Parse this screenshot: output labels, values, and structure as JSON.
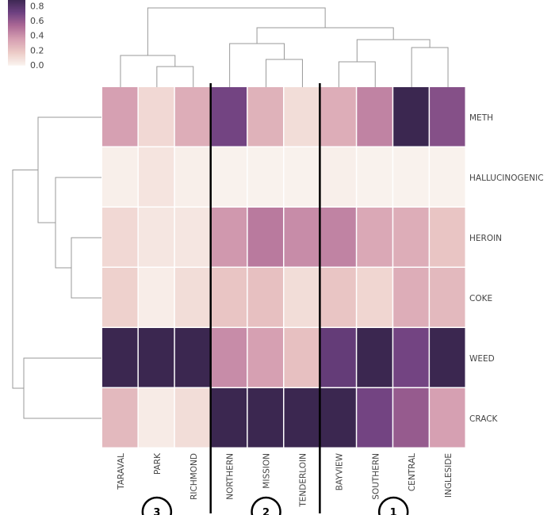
{
  "chart_data": {
    "type": "heatmap",
    "title": "",
    "columns": [
      "TARAVAL",
      "PARK",
      "RICHMOND",
      "NORTHERN",
      "MISSION",
      "TENDERLOIN",
      "BAYVIEW",
      "SOUTHERN",
      "CENTRAL",
      "INGLESIDE"
    ],
    "rows": [
      "METH",
      "HALLUCINOGENIC",
      "HEROIN",
      "COKE",
      "WEED",
      "CRACK"
    ],
    "values": [
      [
        0.35,
        0.12,
        0.3,
        0.7,
        0.28,
        0.1,
        0.3,
        0.45,
        0.92,
        0.65
      ],
      [
        0.02,
        0.07,
        0.02,
        0.01,
        0.01,
        0.01,
        0.02,
        0.01,
        0.01,
        0.01
      ],
      [
        0.12,
        0.06,
        0.06,
        0.38,
        0.48,
        0.42,
        0.45,
        0.32,
        0.3,
        0.2
      ],
      [
        0.15,
        0.03,
        0.1,
        0.2,
        0.22,
        0.1,
        0.2,
        0.13,
        0.3,
        0.25
      ],
      [
        0.92,
        0.92,
        0.92,
        0.42,
        0.35,
        0.22,
        0.75,
        0.92,
        0.7,
        0.92
      ],
      [
        0.25,
        0.04,
        0.1,
        0.92,
        0.92,
        0.92,
        0.92,
        0.7,
        0.6,
        0.35
      ]
    ],
    "colorbar": {
      "ticks": [
        "0.0",
        "0.2",
        "0.4",
        "0.6",
        "0.8"
      ],
      "range": [
        0,
        0.9
      ]
    },
    "colormap": [
      "#faf4ef",
      "#eccac6",
      "#d59eb1",
      "#ab6895",
      "#6c4080",
      "#3b2750"
    ],
    "dendrograms": {
      "rows": true,
      "columns": true
    },
    "cluster_annotations": [
      {
        "label": "3",
        "columns": [
          "TARAVAL",
          "PARK",
          "RICHMOND"
        ]
      },
      {
        "label": "2",
        "columns": [
          "NORTHERN",
          "MISSION",
          "TENDERLOIN"
        ]
      },
      {
        "label": "1",
        "columns": [
          "BAYVIEW",
          "SOUTHERN",
          "CENTRAL",
          "INGLESIDE"
        ]
      }
    ]
  }
}
